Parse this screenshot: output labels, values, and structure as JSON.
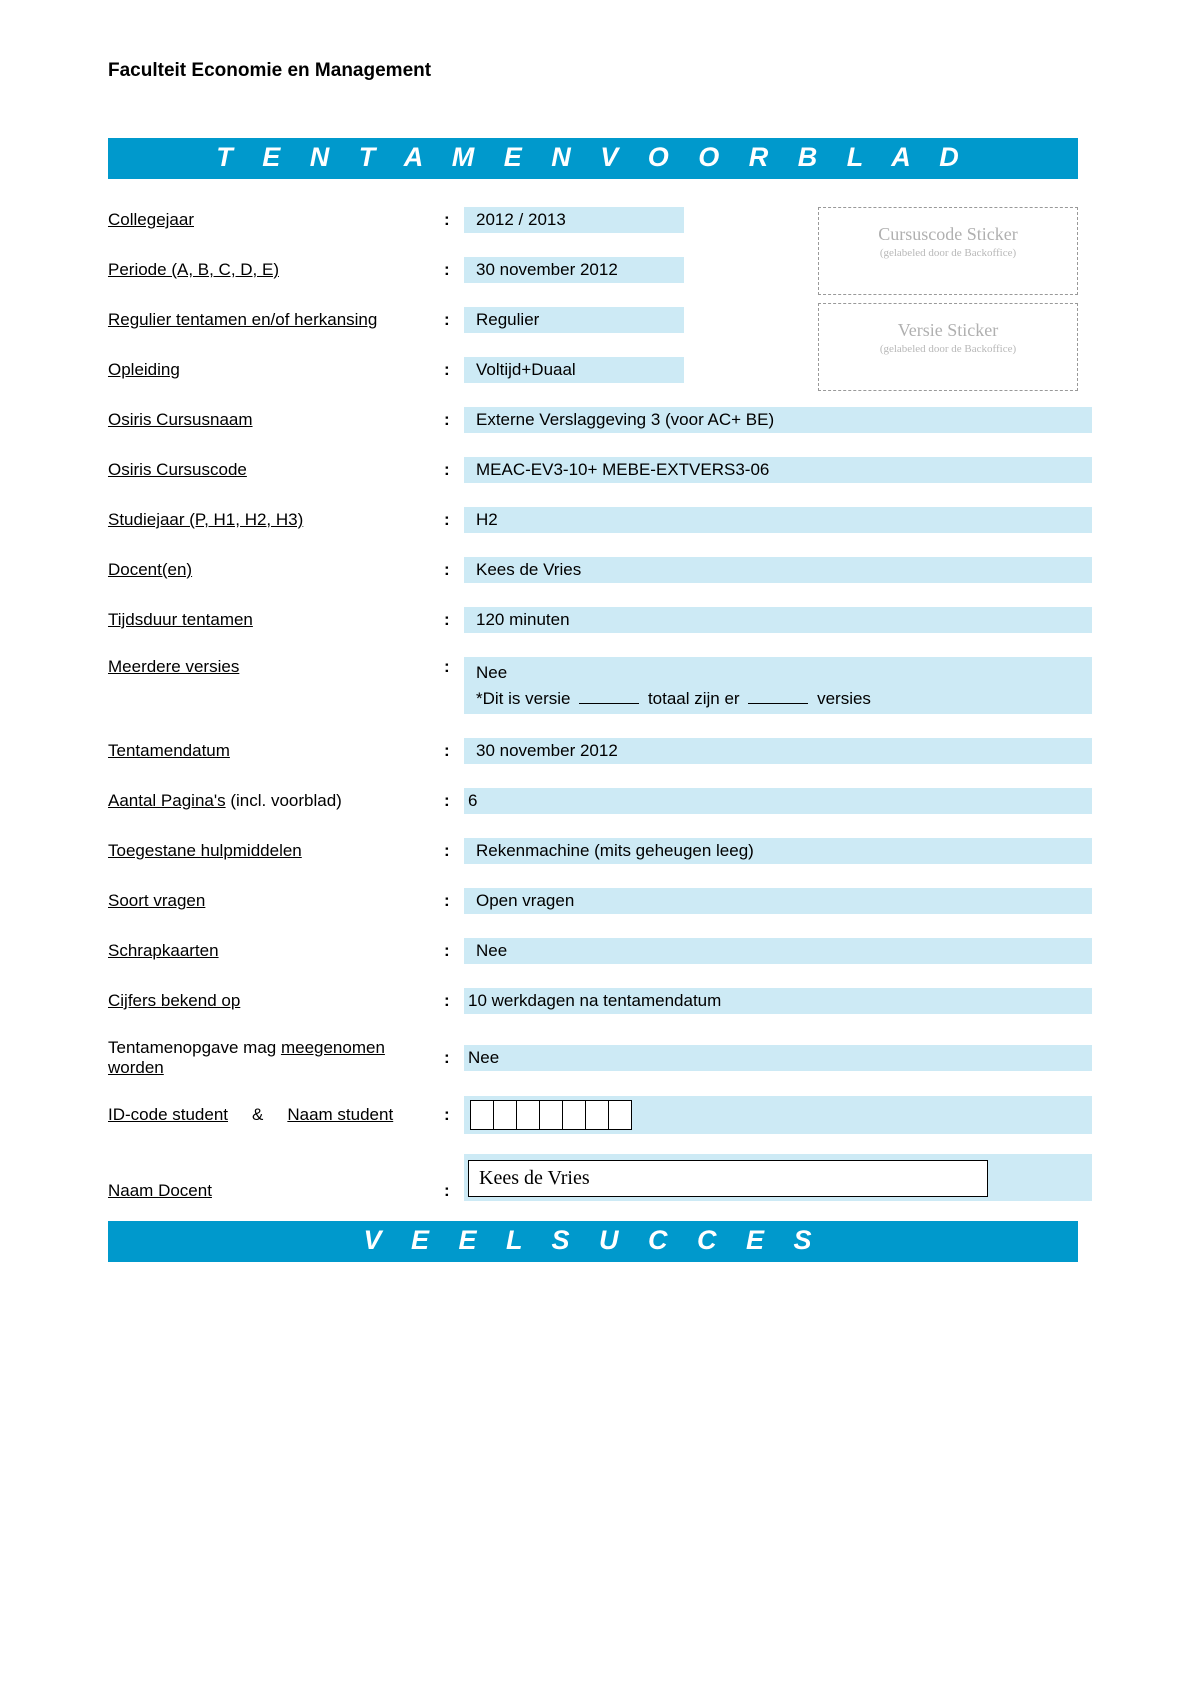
{
  "colors": {
    "banner_bg": "#0099cc",
    "value_bg": "#cdeaf5",
    "sticker_border": "#999999",
    "sticker_text": "#b0b0b0"
  },
  "faculty": "Faculteit Economie en Management",
  "title_banner": "T E N T A M E N V O O R B L A D",
  "footer_banner": "V E E L   S U C C E S",
  "sticker_cursus": {
    "title": "Cursuscode Sticker",
    "sub": "(gelabeled door de Backoffice)"
  },
  "sticker_versie": {
    "title": "Versie Sticker",
    "sub": "(gelabeled door de Backoffice)"
  },
  "rows": {
    "collegejaar": {
      "label": "Collegejaar",
      "value": "2012 / 2013"
    },
    "periode": {
      "label": "Periode (A, B, C, D, E)",
      "value": "30 november 2012"
    },
    "regulier": {
      "label": "Regulier tentamen en/of herkansing",
      "value": "Regulier"
    },
    "opleiding": {
      "label": "Opleiding",
      "value": "Voltijd+Duaal"
    },
    "cursusnaam": {
      "label": "Osiris Cursusnaam",
      "value": "Externe Verslaggeving 3  (voor AC+ BE)"
    },
    "cursuscode": {
      "label": "Osiris Cursuscode",
      "value": "MEAC-EV3-10+ MEBE-EXTVERS3-06"
    },
    "studiejaar": {
      "label": "Studiejaar (P, H1, H2, H3)",
      "value": "H2"
    },
    "docenten": {
      "label": "Docent(en)",
      "value": "Kees de Vries"
    },
    "tijdsduur": {
      "label": "Tijdsduur tentamen",
      "value": "120 minuten"
    },
    "versies": {
      "label": "Meerdere versies",
      "value": "Nee",
      "line2_pre": "*Dit is versie",
      "line2_mid": "totaal zijn er",
      "line2_post": "versies"
    },
    "tentamendatum": {
      "label": "Tentamendatum",
      "value": "30 november 2012"
    },
    "paginas": {
      "label_pre": "Aantal Pagina's",
      "label_post": "  (incl. voorblad)",
      "value": "6"
    },
    "hulpmiddelen": {
      "label": "Toegestane hulpmiddelen",
      "value": "Rekenmachine (mits geheugen leeg)"
    },
    "soortvragen": {
      "label": "Soort vragen",
      "value": "Open vragen"
    },
    "schrapkaarten": {
      "label": "Schrapkaarten",
      "value": "Nee"
    },
    "cijfers": {
      "label": "Cijfers bekend op",
      "value": "10 werkdagen na tentamendatum"
    },
    "meegenomen": {
      "label_pre": "Tentamenopgave mag ",
      "label_ul": "meegenomen worden",
      "value": "Nee"
    },
    "idcode": {
      "label_a": "ID-code student",
      "amp": "&",
      "label_b": "Naam student",
      "box_count": 7
    },
    "naamdocent": {
      "label": "Naam Docent",
      "value": "Kees de Vries"
    }
  }
}
